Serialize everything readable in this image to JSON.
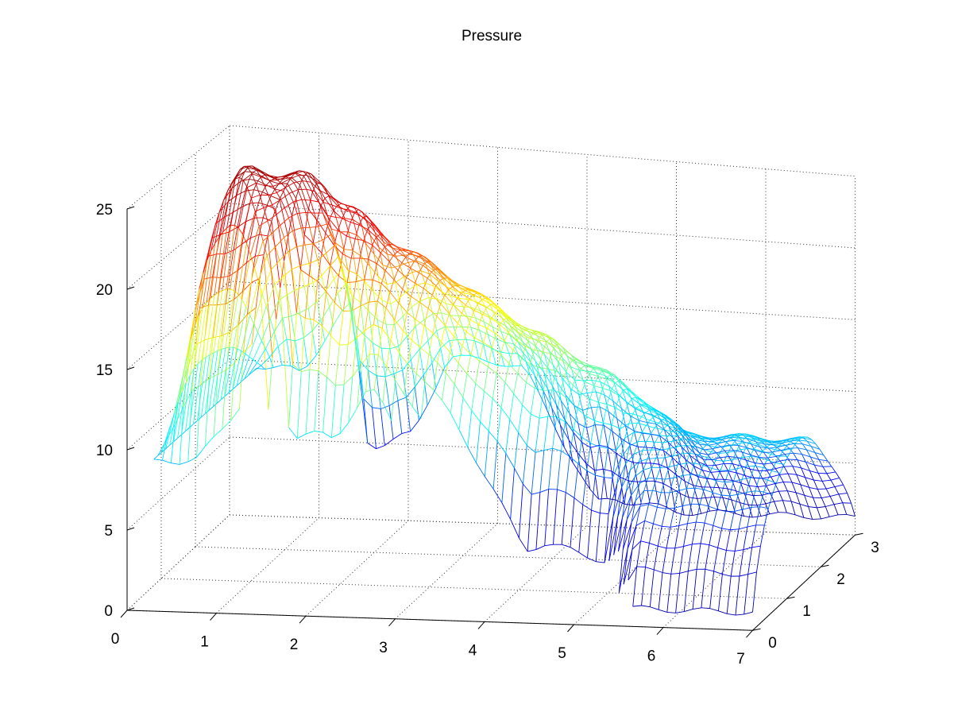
{
  "chart_data": {
    "type": "mesh3d",
    "title": "Pressure",
    "xlabel": "",
    "ylabel": "",
    "zlabel": "",
    "x_ticks": [
      "0",
      "1",
      "2",
      "3",
      "4",
      "5",
      "6",
      "7"
    ],
    "y_ticks": [
      "0",
      "1",
      "2",
      "3"
    ],
    "z_ticks": [
      "0",
      "5",
      "10",
      "15",
      "20",
      "25"
    ],
    "xlim": [
      0,
      7
    ],
    "ylim": [
      0,
      3
    ],
    "zlim": [
      0,
      25
    ],
    "grid": true,
    "colormap": "jet",
    "colormap_colors": [
      "#00008f",
      "#0000ff",
      "#00ffff",
      "#ffff00",
      "#ff0000",
      "#800000"
    ],
    "surface_profile": {
      "x": [
        0.3,
        0.65,
        0.8,
        1.35,
        1.55,
        2.05,
        2.45,
        3.3,
        4.1,
        4.3,
        5.0,
        5.6,
        6.35,
        7.0
      ],
      "z_peak": [
        9.5,
        24.5,
        25.5,
        25.5,
        24.5,
        22.0,
        20.5,
        17.0,
        14.5,
        14.0,
        11.5,
        10.0,
        10.0,
        10.0
      ],
      "z_floor": [
        9.5,
        9.5,
        9.5,
        14.0,
        5.0,
        5.5,
        11.0,
        10.5,
        1.5,
        2.0,
        1.2,
        1.2,
        1.2,
        1.2
      ],
      "y_start": [
        0.0,
        0.0,
        0.0,
        0.0,
        0.6,
        0.6,
        0.6,
        0.9,
        0.9,
        0.9,
        0.9,
        0.0,
        0.0,
        0.0
      ],
      "y_end": [
        3.0,
        3.0,
        3.0,
        3.0,
        3.0,
        3.0,
        3.0,
        3.0,
        3.0,
        3.0,
        3.0,
        3.0,
        3.0,
        3.0
      ]
    }
  }
}
